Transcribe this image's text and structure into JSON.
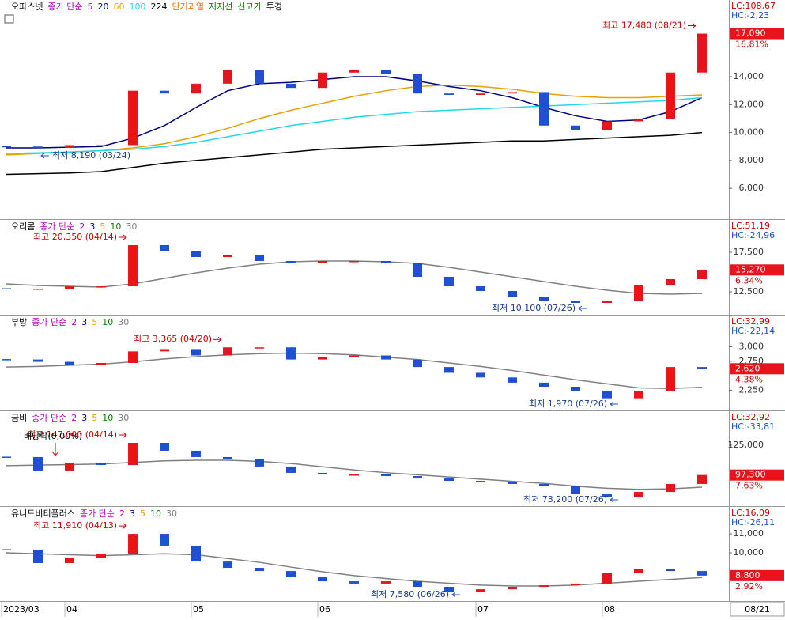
{
  "chart_data": {
    "type": "candlestick",
    "categories": [
      "2023/03",
      null,
      "04",
      null,
      null,
      null,
      "05",
      null,
      null,
      null,
      "06",
      null,
      null,
      null,
      null,
      "07",
      null,
      null,
      null,
      "08",
      null,
      null,
      null
    ],
    "cursor_date": "08/21",
    "panels": [
      {
        "name": "오파스넷",
        "ma_label": "종가 단순",
        "ma_label_color": "#c000c0",
        "ma": [
          {
            "name": "5",
            "color": "#c000c0"
          },
          {
            "name": "20",
            "color": "#000080",
            "values": [
              8900,
              8900,
              8950,
              9000,
              9600,
              10500,
              11800,
              13000,
              13500,
              13600,
              13800,
              14000,
              14000,
              13700,
              13300,
              13000,
              12500,
              11800,
              11200,
              10800,
              10900,
              11500,
              12500
            ]
          },
          {
            "name": "60",
            "color": "#e8a000",
            "values": [
              8400,
              8500,
              8600,
              8700,
              8900,
              9200,
              9700,
              10300,
              11000,
              11600,
              12100,
              12600,
              13000,
              13300,
              13400,
              13300,
              13100,
              12800,
              12600,
              12500,
              12500,
              12600,
              12700
            ]
          },
          {
            "name": "100",
            "color": "#20d8e8",
            "values": [
              8500,
              8550,
              8600,
              8700,
              8800,
              9000,
              9300,
              9700,
              10100,
              10500,
              10800,
              11100,
              11300,
              11500,
              11600,
              11700,
              11800,
              11900,
              12000,
              12100,
              12200,
              12300,
              12500
            ]
          },
          {
            "name": "224",
            "color": "#000000",
            "values": [
              7000,
              7050,
              7100,
              7200,
              7500,
              7800,
              8000,
              8200,
              8400,
              8600,
              8800,
              8900,
              9000,
              9100,
              9200,
              9300,
              9400,
              9400,
              9500,
              9600,
              9700,
              9800,
              10000
            ]
          }
        ],
        "extras": [
          {
            "text": "단기과열",
            "color": "#e07000"
          },
          {
            "text": "지지선",
            "color": "#008000"
          },
          {
            "text": "신고가",
            "color": "#008000"
          },
          {
            "text": "투경",
            "color": "#000000"
          }
        ],
        "values": [
          9000,
          8900,
          9100,
          9100,
          13000,
          12800,
          13500,
          14500,
          13500,
          13200,
          14300,
          14500,
          14200,
          12800,
          12700,
          12800,
          12900,
          10500,
          10200,
          10800,
          11000,
          14300,
          17090
        ],
        "ylim": [
          3800,
          19500
        ],
        "yticks": [
          {
            "value": 6000,
            "label": "6,000"
          },
          {
            "value": 8000,
            "label": "8,000"
          },
          {
            "value": 10000,
            "label": "10,000"
          },
          {
            "value": 12000,
            "label": "12,000"
          },
          {
            "value": 14000,
            "label": "14,000"
          }
        ],
        "lc": "LC:108,67",
        "hc": "HC:-2,23",
        "last": {
          "value": 17090,
          "label": "17,090"
        },
        "change": "16,81%",
        "high_note": "최고 17,480 (08/21)",
        "low_note": "최저 8,190 (03/24)"
      },
      {
        "name": "오리콤",
        "ma_label": "종가 단순",
        "ma_label_color": "#c000c0",
        "ma": [
          {
            "name": "2",
            "color": "#c000c0"
          },
          {
            "name": "3",
            "color": "#000080"
          },
          {
            "name": "5",
            "color": "#e8a000"
          },
          {
            "name": "10",
            "color": "#008000"
          },
          {
            "name": "30",
            "color": "#808080",
            "values": [
              13500,
              13300,
              13200,
              13100,
              13500,
              14200,
              14900,
              15500,
              16000,
              16300,
              16400,
              16400,
              16300,
              16100,
              15600,
              15000,
              14400,
              13800,
              13200,
              12700,
              12300,
              12200,
              12300
            ]
          }
        ],
        "values": [
          12900,
          12900,
          13200,
          13200,
          18400,
          17600,
          16900,
          17200,
          16400,
          16200,
          16400,
          16400,
          16100,
          14400,
          13200,
          12600,
          11900,
          11400,
          11100,
          11400,
          13400,
          14100,
          15270
        ],
        "ylim": [
          9600,
          21600
        ],
        "yticks": [
          {
            "value": 12500,
            "label": "12,500"
          },
          {
            "value": 17500,
            "label": "17,500"
          }
        ],
        "lc": "LC:51,19",
        "hc": "HC:-24,96",
        "last": {
          "value": 15270,
          "label": "15,270"
        },
        "change": "6,34%",
        "high_note": "최고 20,350 (04/14)",
        "low_note": "최저 10,100 (07/26)"
      },
      {
        "name": "부방",
        "ma_label": "종가 단순",
        "ma_label_color": "#c000c0",
        "ma": [
          {
            "name": "2",
            "color": "#c000c0"
          },
          {
            "name": "3",
            "color": "#000080"
          },
          {
            "name": "5",
            "color": "#e8a000"
          },
          {
            "name": "10",
            "color": "#008000"
          },
          {
            "name": "30",
            "color": "#808080",
            "values": [
              2650,
              2660,
              2680,
              2700,
              2740,
              2790,
              2830,
              2860,
              2880,
              2890,
              2880,
              2860,
              2820,
              2780,
              2720,
              2660,
              2590,
              2510,
              2430,
              2360,
              2290,
              2280,
              2300
            ]
          }
        ],
        "values": [
          2780,
          2740,
          2690,
          2720,
          2920,
          2960,
          2850,
          2990,
          2990,
          2780,
          2820,
          2850,
          2780,
          2650,
          2550,
          2470,
          2380,
          2310,
          2240,
          2110,
          2240,
          2650,
          2620
        ],
        "ylim": [
          1900,
          3540
        ],
        "yticks": [
          {
            "value": 2250,
            "label": "2,250"
          },
          {
            "value": 2750,
            "label": "2,750"
          },
          {
            "value": 3000,
            "label": "3,000"
          }
        ],
        "lc": "LC:32,99",
        "hc": "HC:-22,14",
        "last": {
          "value": 2620,
          "label": "2,620"
        },
        "change": "4,38%",
        "high_note": "최고 3,365 (04/20)",
        "low_note": "최저 1,970 (07/26)"
      },
      {
        "name": "금비",
        "ma_label": "종가 단순",
        "ma_label_color": "#c000c0",
        "ma": [
          {
            "name": "2",
            "color": "#c000c0"
          },
          {
            "name": "3",
            "color": "#000080"
          },
          {
            "name": "5",
            "color": "#e8a000"
          },
          {
            "name": "10",
            "color": "#008000"
          },
          {
            "name": "30",
            "color": "#808080",
            "values": [
              106000,
              106500,
              107000,
              107500,
              109000,
              110500,
              111000,
              111000,
              110000,
              108000,
              105000,
              102000,
              99500,
              97500,
              95500,
              93500,
              91500,
              89500,
              87000,
              85000,
              84000,
              84500,
              86000
            ]
          }
        ],
        "values": [
          114000,
          101500,
          108800,
          106600,
          127200,
          119900,
          114000,
          112500,
          105200,
          99300,
          97800,
          97800,
          96300,
          94100,
          91900,
          90500,
          89000,
          86800,
          79400,
          77200,
          81600,
          89000,
          97300
        ],
        "ylim": [
          68400,
          156600
        ],
        "yticks": [
          {
            "value": 125000,
            "label": "125,000"
          }
        ],
        "lc": "LC:32,92",
        "hc": "HC:-33,81",
        "last": {
          "value": 97300,
          "label": "97,300"
        },
        "change": "7,63%",
        "high_note": "최고 147,000 (04/14)",
        "low_note": "최저 73,200 (07/26)",
        "event_note": "배당락(0,00%)"
      },
      {
        "name": "유니드비티플러스",
        "ma_label": "종가 단순",
        "ma_label_color": "#c000c0",
        "ma": [
          {
            "name": "2",
            "color": "#c000c0"
          },
          {
            "name": "3",
            "color": "#000080"
          },
          {
            "name": "5",
            "color": "#e8a000"
          },
          {
            "name": "10",
            "color": "#008000"
          },
          {
            "name": "30",
            "color": "#808080",
            "values": [
              10000,
              9950,
              9900,
              9850,
              9900,
              9950,
              9900,
              9700,
              9500,
              9250,
              9000,
              8800,
              8650,
              8500,
              8400,
              8300,
              8250,
              8250,
              8300,
              8400,
              8500,
              8600,
              8700
            ]
          }
        ],
        "values": [
          10170,
          9460,
          9750,
          9960,
          11000,
          10380,
          9540,
          9210,
          9040,
          8710,
          8500,
          8380,
          8500,
          8210,
          7960,
          8080,
          8210,
          8290,
          8380,
          8920,
          9130,
          9040,
          8800
        ],
        "ylim": [
          7460,
          12420
        ],
        "yticks": [
          {
            "value": 10000,
            "label": "10,000"
          },
          {
            "value": 11000,
            "label": "11,000"
          }
        ],
        "lc": "LC:16,09",
        "hc": "HC:-26,11",
        "last": {
          "value": 8800,
          "label": "8,800"
        },
        "change": "2,92%",
        "high_note": "최고 11,910 (04/13)",
        "low_note": "최저 7,580 (06/26)"
      }
    ]
  }
}
